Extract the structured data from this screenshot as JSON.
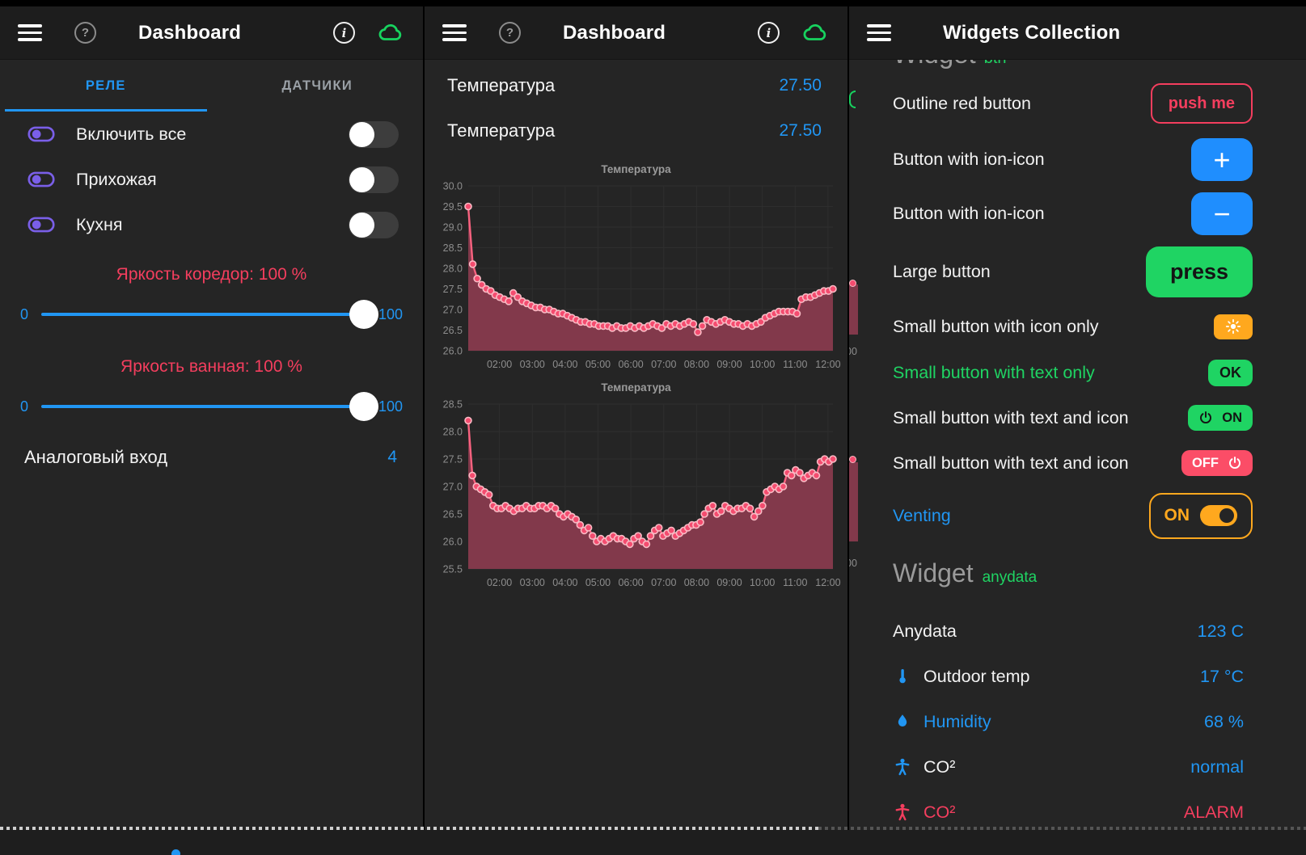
{
  "left_panel": {
    "toolbar": {
      "title": "Dashboard"
    },
    "tabs": {
      "active": "РЕЛЕ",
      "inactive": "ДАТЧИКИ"
    },
    "switches": [
      {
        "label": "Включить все"
      },
      {
        "label": "Прихожая"
      },
      {
        "label": "Кухня"
      }
    ],
    "sliders": [
      {
        "label": "Яркость коредор: 100 %",
        "min_label": "0",
        "max_label": "100",
        "value": 100
      },
      {
        "label": "Яркость ванная: 100 %",
        "min_label": "0",
        "max_label": "100",
        "value": 100
      }
    ],
    "analog_row": {
      "label": "Аналоговый вход",
      "value": "4"
    }
  },
  "middle_panel": {
    "toolbar": {
      "title": "Dashboard"
    },
    "values": [
      {
        "label": "Температура",
        "value": "27.50"
      },
      {
        "label": "Температура",
        "value": "27.50"
      }
    ]
  },
  "right_panel": {
    "toolbar": {
      "title": "Widgets Collection"
    },
    "clipped_heading": {
      "title": "Widget",
      "tag": "btn"
    },
    "button_rows": [
      {
        "label": "Outline red button",
        "button_text": "push me"
      },
      {
        "label": "Button with ion-icon",
        "button_text": "+"
      },
      {
        "label": "Button with ion-icon",
        "button_text": "−"
      },
      {
        "label": "Large button",
        "button_text": "press"
      },
      {
        "label": "Small button with icon only"
      },
      {
        "label": "Small button with text only",
        "button_text": "OK"
      },
      {
        "label": "Small button with text and icon",
        "button_text": "ON"
      },
      {
        "label": "Small button with text and icon",
        "button_text": "OFF"
      },
      {
        "label": "Venting",
        "button_text": "ON"
      }
    ],
    "section_heading": {
      "title": "Widget",
      "tag": "anydata"
    },
    "data_rows": [
      {
        "label": "Anydata",
        "value": "123 C"
      },
      {
        "label": "Outdoor temp",
        "value": "17 °C"
      },
      {
        "label": "Humidity",
        "value": "68 %"
      },
      {
        "label": "CO²",
        "value": "normal"
      },
      {
        "label": "CO²",
        "value": "ALARM"
      }
    ],
    "edge_fragment_label": "00"
  },
  "colors": {
    "accent_blue": "#2196f3",
    "accent_red": "#f43e5e",
    "accent_green": "#1fd463",
    "accent_orange": "#ffa81e",
    "accent_purple": "#7a5fe8",
    "cloud_green": "#17d35f"
  },
  "chart_data": [
    {
      "type": "line",
      "title": "Температура",
      "series": [
        {
          "name": "Температура",
          "values": [
            29.5,
            28.1,
            27.75,
            27.6,
            27.5,
            27.45,
            27.35,
            27.3,
            27.25,
            27.2,
            27.4,
            27.3,
            27.2,
            27.15,
            27.1,
            27.05,
            27.05,
            27.0,
            27.0,
            26.95,
            26.9,
            26.9,
            26.85,
            26.8,
            26.75,
            26.7,
            26.7,
            26.65,
            26.65,
            26.6,
            26.6,
            26.6,
            26.55,
            26.6,
            26.55,
            26.55,
            26.6,
            26.55,
            26.6,
            26.55,
            26.6,
            26.65,
            26.6,
            26.55,
            26.65,
            26.6,
            26.65,
            26.6,
            26.65,
            26.7,
            26.65,
            26.45,
            26.6,
            26.75,
            26.7,
            26.65,
            26.7,
            26.75,
            26.7,
            26.65,
            26.65,
            26.6,
            26.65,
            26.6,
            26.65,
            26.7,
            26.8,
            26.85,
            26.9,
            26.95,
            26.95,
            26.95,
            26.95,
            26.9,
            27.25,
            27.3,
            27.3,
            27.35,
            27.4,
            27.45,
            27.45,
            27.5
          ]
        }
      ],
      "x_ticks": [
        "02:00",
        "03:00",
        "04:00",
        "05:00",
        "06:00",
        "07:00",
        "08:00",
        "09:00",
        "10:00",
        "11:00",
        "12:00"
      ],
      "x_range_hours": [
        1.05,
        12.15
      ],
      "ylim": [
        26.0,
        30.0
      ],
      "y_step": 0.5,
      "grid": true,
      "line_color": "#f8627f",
      "area_color": "#82394b",
      "dot_fill": "#f44c6f",
      "dot_stroke": "#f9bac4",
      "axis_text_color": "#8d8d8d",
      "grid_color": "#2e2e2e"
    },
    {
      "type": "line",
      "title": "Температура",
      "series": [
        {
          "name": "Температура",
          "values": [
            28.2,
            27.2,
            27.0,
            26.95,
            26.9,
            26.85,
            26.65,
            26.6,
            26.6,
            26.65,
            26.6,
            26.55,
            26.6,
            26.6,
            26.65,
            26.6,
            26.6,
            26.65,
            26.65,
            26.6,
            26.65,
            26.6,
            26.5,
            26.45,
            26.5,
            26.45,
            26.4,
            26.3,
            26.2,
            26.25,
            26.1,
            26.0,
            26.05,
            26.0,
            26.05,
            26.1,
            26.05,
            26.05,
            26.0,
            25.95,
            26.05,
            26.1,
            26.0,
            25.95,
            26.1,
            26.2,
            26.25,
            26.1,
            26.15,
            26.2,
            26.1,
            26.15,
            26.2,
            26.25,
            26.3,
            26.3,
            26.35,
            26.5,
            26.6,
            26.65,
            26.5,
            26.55,
            26.65,
            26.6,
            26.55,
            26.6,
            26.6,
            26.65,
            26.6,
            26.45,
            26.55,
            26.65,
            26.9,
            26.95,
            27.0,
            26.95,
            27.0,
            27.25,
            27.2,
            27.3,
            27.25,
            27.15,
            27.2,
            27.25,
            27.2,
            27.45,
            27.5,
            27.45,
            27.5
          ]
        }
      ],
      "x_ticks": [
        "02:00",
        "03:00",
        "04:00",
        "05:00",
        "06:00",
        "07:00",
        "08:00",
        "09:00",
        "10:00",
        "11:00",
        "12:00"
      ],
      "x_range_hours": [
        1.05,
        12.15
      ],
      "ylim": [
        25.5,
        28.5
      ],
      "y_step": 0.5,
      "grid": true,
      "line_color": "#f8627f",
      "area_color": "#82394b",
      "dot_fill": "#f44c6f",
      "dot_stroke": "#f9bac4",
      "axis_text_color": "#8d8d8d",
      "grid_color": "#2e2e2e"
    }
  ]
}
